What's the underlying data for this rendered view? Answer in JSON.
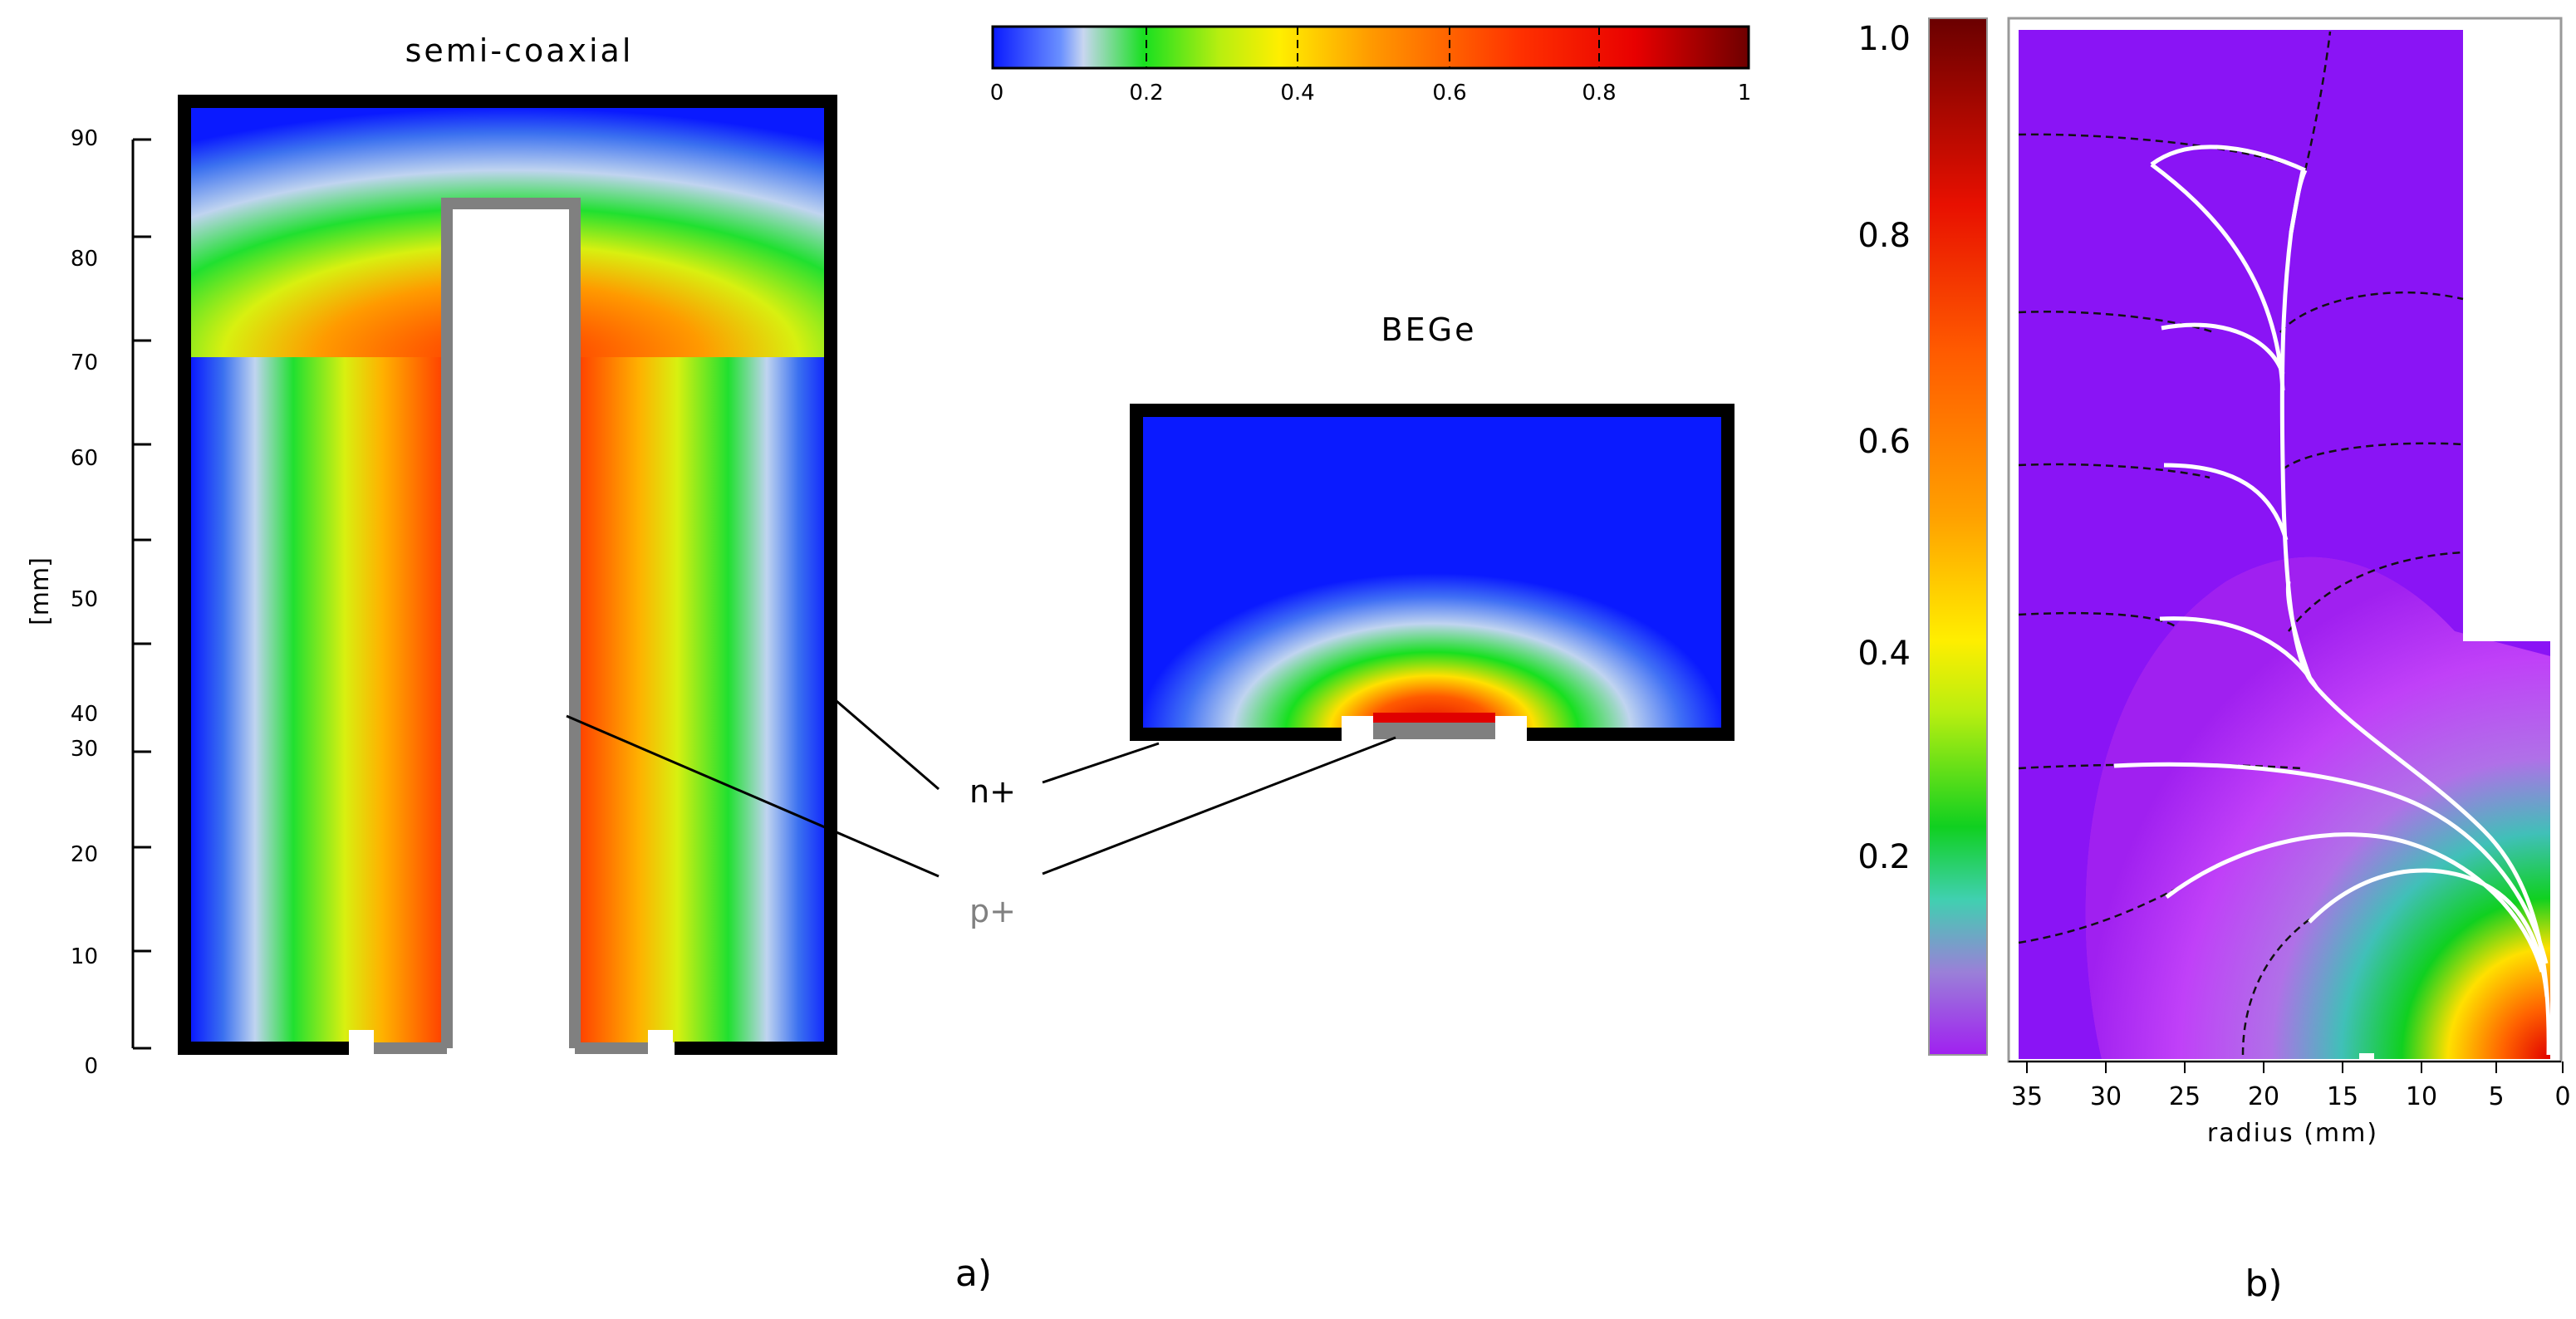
{
  "panel_a": {
    "semicoax_title": "semi-coaxial",
    "bege_title": "BEGe",
    "axis_unit": "[mm]",
    "axis_ticks": [
      "0",
      "10",
      "20",
      "30",
      "40",
      "50",
      "60",
      "70",
      "80",
      "90"
    ],
    "n_label": "n+",
    "p_label": "p+",
    "panel_label": "a)",
    "colorbar_ticks": [
      "0",
      "0.2",
      "0.4",
      "0.6",
      "0.8",
      "1"
    ]
  },
  "panel_b": {
    "colorbar_ticks": [
      "0.2",
      "0.4",
      "0.6",
      "0.8",
      "1.0"
    ],
    "x_ticks": [
      "35",
      "30",
      "25",
      "20",
      "15",
      "10",
      "5",
      "0"
    ],
    "x_label": "radius (mm)",
    "panel_label": "b)"
  },
  "colors": {
    "contact_n": "#000000",
    "contact_p": "#808080",
    "field_low": "#0a2cf0",
    "field_high": "#8b0000",
    "background_b": "#8a14f5"
  }
}
